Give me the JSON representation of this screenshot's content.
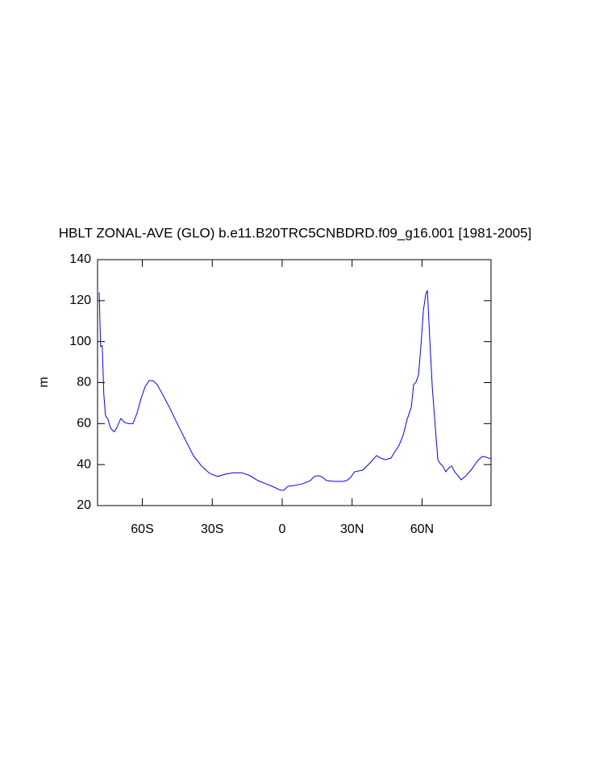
{
  "chart_data": {
    "type": "line",
    "title": "HBLT ZONAL-AVE (GLO) b.e11.B20TRC5CNBDRD.f09_g16.001 [1981-2005]",
    "ylabel": "m",
    "x": [
      -78.5,
      -77.9,
      -77.2,
      -76.5,
      -75.8,
      -74.7,
      -73.7,
      -72.7,
      -72.0,
      -71.0,
      -69.2,
      -67.5,
      -65.7,
      -64.0,
      -62.3,
      -60.6,
      -58.8,
      -57.1,
      -55.4,
      -53.6,
      -51.9,
      -48.4,
      -45.0,
      -41.5,
      -38.1,
      -34.6,
      -31.1,
      -27.7,
      -24.2,
      -20.8,
      -17.3,
      -13.8,
      -10.4,
      -6.9,
      -3.5,
      -0.7,
      0.7,
      2.4,
      5.2,
      8.7,
      12.1,
      13.8,
      15.6,
      17.3,
      19.0,
      22.5,
      26.0,
      27.7,
      29.4,
      31.1,
      34.6,
      38.1,
      40.5,
      42.2,
      44.3,
      46.7,
      48.4,
      50.2,
      51.9,
      53.6,
      55.4,
      56.4,
      57.4,
      58.5,
      59.5,
      60.6,
      61.6,
      62.3,
      63.3,
      64.4,
      65.7,
      66.8,
      67.8,
      68.9,
      70.2,
      71.6,
      72.7,
      74.0,
      75.4,
      76.8,
      78.9,
      81.3,
      83.7,
      85.8,
      87.5,
      89.6
    ],
    "series": [
      {
        "color": "#0000ff",
        "values": [
          124,
          97.6,
          98,
          74,
          64,
          62,
          58,
          56.6,
          56,
          58,
          62.5,
          60.5,
          60,
          60,
          65,
          72,
          78,
          81,
          81,
          79,
          75.5,
          68,
          60,
          52,
          44.4,
          39.3,
          35.7,
          34.2,
          35.4,
          36,
          36,
          34.6,
          32.2,
          30.6,
          29,
          27.5,
          27.5,
          29.4,
          29.8,
          30.6,
          32.2,
          34.2,
          34.6,
          33.8,
          32.2,
          31.8,
          31.8,
          32.2,
          33.8,
          36.5,
          37.3,
          41.3,
          44.4,
          43.2,
          42.4,
          43.2,
          46.4,
          49.5,
          54.3,
          62,
          68,
          79,
          80.2,
          83.8,
          97.6,
          115.3,
          123.1,
          125,
          101.5,
          77.9,
          58.2,
          42.4,
          40.5,
          39.3,
          36.5,
          38.5,
          39.3,
          36.5,
          34.6,
          32.6,
          34.6,
          37.7,
          41.7,
          44,
          43.6,
          42.8
        ]
      }
    ],
    "xlim": [
      -79.2,
      89.6
    ],
    "xticks": [
      {
        "value": -60,
        "label": "60S"
      },
      {
        "value": -30,
        "label": "30S"
      },
      0,
      {
        "value": 30,
        "label": "30N"
      },
      {
        "value": 60,
        "label": "60N"
      }
    ],
    "ylim": [
      20,
      140
    ],
    "yticks": [
      20,
      40,
      60,
      80,
      100,
      120,
      140
    ]
  }
}
